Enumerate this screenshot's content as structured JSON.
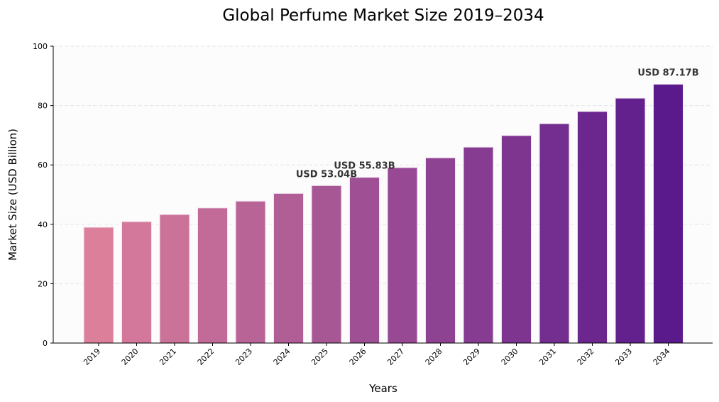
{
  "chart_data": {
    "type": "bar",
    "title": "Global Perfume Market Size 2019–2034",
    "xlabel": "Years",
    "ylabel": "Market Size (USD Billion)",
    "ylim": [
      0,
      100
    ],
    "yticks": [
      0,
      20,
      40,
      60,
      80,
      100
    ],
    "grid": "y dashed",
    "categories": [
      "2019",
      "2020",
      "2021",
      "2022",
      "2023",
      "2024",
      "2025",
      "2026",
      "2027",
      "2028",
      "2029",
      "2030",
      "2031",
      "2032",
      "2033",
      "2034"
    ],
    "values": [
      39.0,
      40.9,
      43.3,
      45.5,
      47.8,
      50.4,
      53.04,
      55.83,
      59.1,
      62.4,
      66.0,
      69.9,
      73.9,
      78.0,
      82.5,
      87.17
    ],
    "annotations": [
      {
        "category": "2025",
        "text": "USD 53.04B"
      },
      {
        "category": "2026",
        "text": "USD 55.83B"
      },
      {
        "category": "2034",
        "text": "USD 87.17B"
      }
    ],
    "colors": {
      "start": "#dc7f9b",
      "end": "#5a1a8c",
      "background": "#fcfcfc",
      "grid": "#e4e4e4"
    }
  }
}
